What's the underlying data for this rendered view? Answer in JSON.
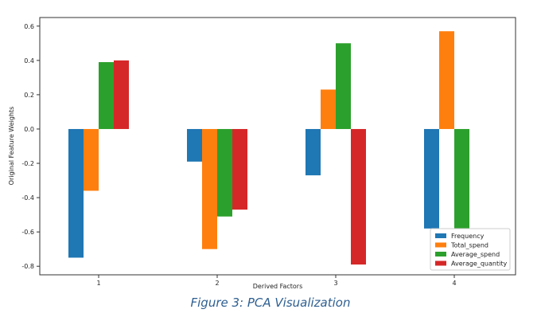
{
  "chart_data": {
    "type": "bar",
    "title": "",
    "xlabel": "Derived Factors",
    "ylabel": "Original Feature Weights",
    "categories": [
      "1",
      "2",
      "3",
      "4"
    ],
    "series": [
      {
        "name": "Frequency",
        "color": "#1f77b4",
        "values": [
          -0.75,
          -0.19,
          -0.27,
          -0.58
        ]
      },
      {
        "name": "Total_spend",
        "color": "#ff7f0e",
        "values": [
          -0.36,
          -0.7,
          0.23,
          0.57
        ]
      },
      {
        "name": "Average_spend",
        "color": "#2ca02c",
        "values": [
          0.39,
          -0.51,
          0.5,
          -0.58
        ]
      },
      {
        "name": "Average_quantity",
        "color": "#d62728",
        "values": [
          0.4,
          -0.47,
          -0.79,
          0.0
        ]
      }
    ],
    "ylim": [
      -0.85,
      0.65
    ],
    "yticks": [
      "0.6",
      "0.4",
      "0.2",
      "0.0",
      "-0.2",
      "-0.4",
      "-0.6",
      "-0.8"
    ],
    "legend_position": "bottom-right",
    "grid": false
  },
  "caption": "Figure 3: PCA Visualization"
}
